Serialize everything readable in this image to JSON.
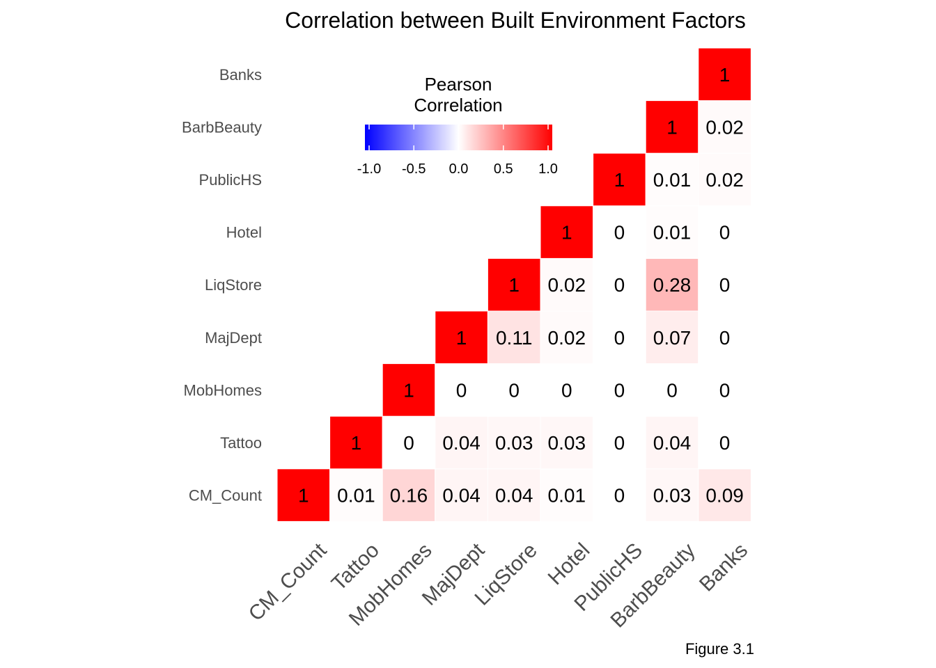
{
  "chart_data": {
    "type": "heatmap",
    "title": "Correlation between Built Environment Factors",
    "caption": "Figure 3.1",
    "variables": [
      "CM_Count",
      "Tattoo",
      "MobHomes",
      "MajDept",
      "LiqStore",
      "Hotel",
      "PublicHS",
      "BarbBeauty",
      "Banks"
    ],
    "upper_triangle": [
      {
        "x": "CM_Count",
        "y": "CM_Count",
        "value": 1,
        "label": "1"
      },
      {
        "x": "Tattoo",
        "y": "CM_Count",
        "value": 0.01,
        "label": "0.01"
      },
      {
        "x": "MobHomes",
        "y": "CM_Count",
        "value": 0.16,
        "label": "0.16"
      },
      {
        "x": "MajDept",
        "y": "CM_Count",
        "value": 0.04,
        "label": "0.04"
      },
      {
        "x": "LiqStore",
        "y": "CM_Count",
        "value": 0.04,
        "label": "0.04"
      },
      {
        "x": "Hotel",
        "y": "CM_Count",
        "value": 0.01,
        "label": "0.01"
      },
      {
        "x": "PublicHS",
        "y": "CM_Count",
        "value": 0,
        "label": "0"
      },
      {
        "x": "BarbBeauty",
        "y": "CM_Count",
        "value": 0.03,
        "label": "0.03"
      },
      {
        "x": "Banks",
        "y": "CM_Count",
        "value": 0.09,
        "label": "0.09"
      },
      {
        "x": "Tattoo",
        "y": "Tattoo",
        "value": 1,
        "label": "1"
      },
      {
        "x": "MobHomes",
        "y": "Tattoo",
        "value": 0,
        "label": "0"
      },
      {
        "x": "MajDept",
        "y": "Tattoo",
        "value": 0.04,
        "label": "0.04"
      },
      {
        "x": "LiqStore",
        "y": "Tattoo",
        "value": 0.03,
        "label": "0.03"
      },
      {
        "x": "Hotel",
        "y": "Tattoo",
        "value": 0.03,
        "label": "0.03"
      },
      {
        "x": "PublicHS",
        "y": "Tattoo",
        "value": 0,
        "label": "0"
      },
      {
        "x": "BarbBeauty",
        "y": "Tattoo",
        "value": 0.04,
        "label": "0.04"
      },
      {
        "x": "Banks",
        "y": "Tattoo",
        "value": 0,
        "label": "0"
      },
      {
        "x": "MobHomes",
        "y": "MobHomes",
        "value": 1,
        "label": "1"
      },
      {
        "x": "MajDept",
        "y": "MobHomes",
        "value": 0,
        "label": "0"
      },
      {
        "x": "LiqStore",
        "y": "MobHomes",
        "value": 0,
        "label": "0"
      },
      {
        "x": "Hotel",
        "y": "MobHomes",
        "value": 0,
        "label": "0"
      },
      {
        "x": "PublicHS",
        "y": "MobHomes",
        "value": 0,
        "label": "0"
      },
      {
        "x": "BarbBeauty",
        "y": "MobHomes",
        "value": 0,
        "label": "0"
      },
      {
        "x": "Banks",
        "y": "MobHomes",
        "value": 0,
        "label": "0"
      },
      {
        "x": "MajDept",
        "y": "MajDept",
        "value": 1,
        "label": "1"
      },
      {
        "x": "LiqStore",
        "y": "MajDept",
        "value": 0.11,
        "label": "0.11"
      },
      {
        "x": "Hotel",
        "y": "MajDept",
        "value": 0.02,
        "label": "0.02"
      },
      {
        "x": "PublicHS",
        "y": "MajDept",
        "value": 0,
        "label": "0"
      },
      {
        "x": "BarbBeauty",
        "y": "MajDept",
        "value": 0.07,
        "label": "0.07"
      },
      {
        "x": "Banks",
        "y": "MajDept",
        "value": 0,
        "label": "0"
      },
      {
        "x": "LiqStore",
        "y": "LiqStore",
        "value": 1,
        "label": "1"
      },
      {
        "x": "Hotel",
        "y": "LiqStore",
        "value": 0.02,
        "label": "0.02"
      },
      {
        "x": "PublicHS",
        "y": "LiqStore",
        "value": 0,
        "label": "0"
      },
      {
        "x": "BarbBeauty",
        "y": "LiqStore",
        "value": 0.28,
        "label": "0.28"
      },
      {
        "x": "Banks",
        "y": "LiqStore",
        "value": 0,
        "label": "0"
      },
      {
        "x": "Hotel",
        "y": "Hotel",
        "value": 1,
        "label": "1"
      },
      {
        "x": "PublicHS",
        "y": "Hotel",
        "value": 0,
        "label": "0"
      },
      {
        "x": "BarbBeauty",
        "y": "Hotel",
        "value": 0.01,
        "label": "0.01"
      },
      {
        "x": "Banks",
        "y": "Hotel",
        "value": 0,
        "label": "0"
      },
      {
        "x": "PublicHS",
        "y": "PublicHS",
        "value": 1,
        "label": "1"
      },
      {
        "x": "BarbBeauty",
        "y": "PublicHS",
        "value": 0.01,
        "label": "0.01"
      },
      {
        "x": "Banks",
        "y": "PublicHS",
        "value": 0.02,
        "label": "0.02"
      },
      {
        "x": "BarbBeauty",
        "y": "BarbBeauty",
        "value": 1,
        "label": "1"
      },
      {
        "x": "Banks",
        "y": "BarbBeauty",
        "value": 0.02,
        "label": "0.02"
      },
      {
        "x": "Banks",
        "y": "Banks",
        "value": 1,
        "label": "1"
      }
    ],
    "legend": {
      "title_lines": [
        "Pearson",
        "Correlation"
      ],
      "range": [
        -1,
        1
      ],
      "ticks": [
        -1.0,
        -0.5,
        0.0,
        0.5,
        1.0
      ],
      "tick_labels": [
        "-1.0",
        "-0.5",
        "0.0",
        "0.5",
        "1.0"
      ],
      "colors": {
        "low": "#0000ff",
        "mid": "#ffffff",
        "high": "#ff0000"
      },
      "orientation": "horizontal",
      "position": "top-left"
    }
  }
}
